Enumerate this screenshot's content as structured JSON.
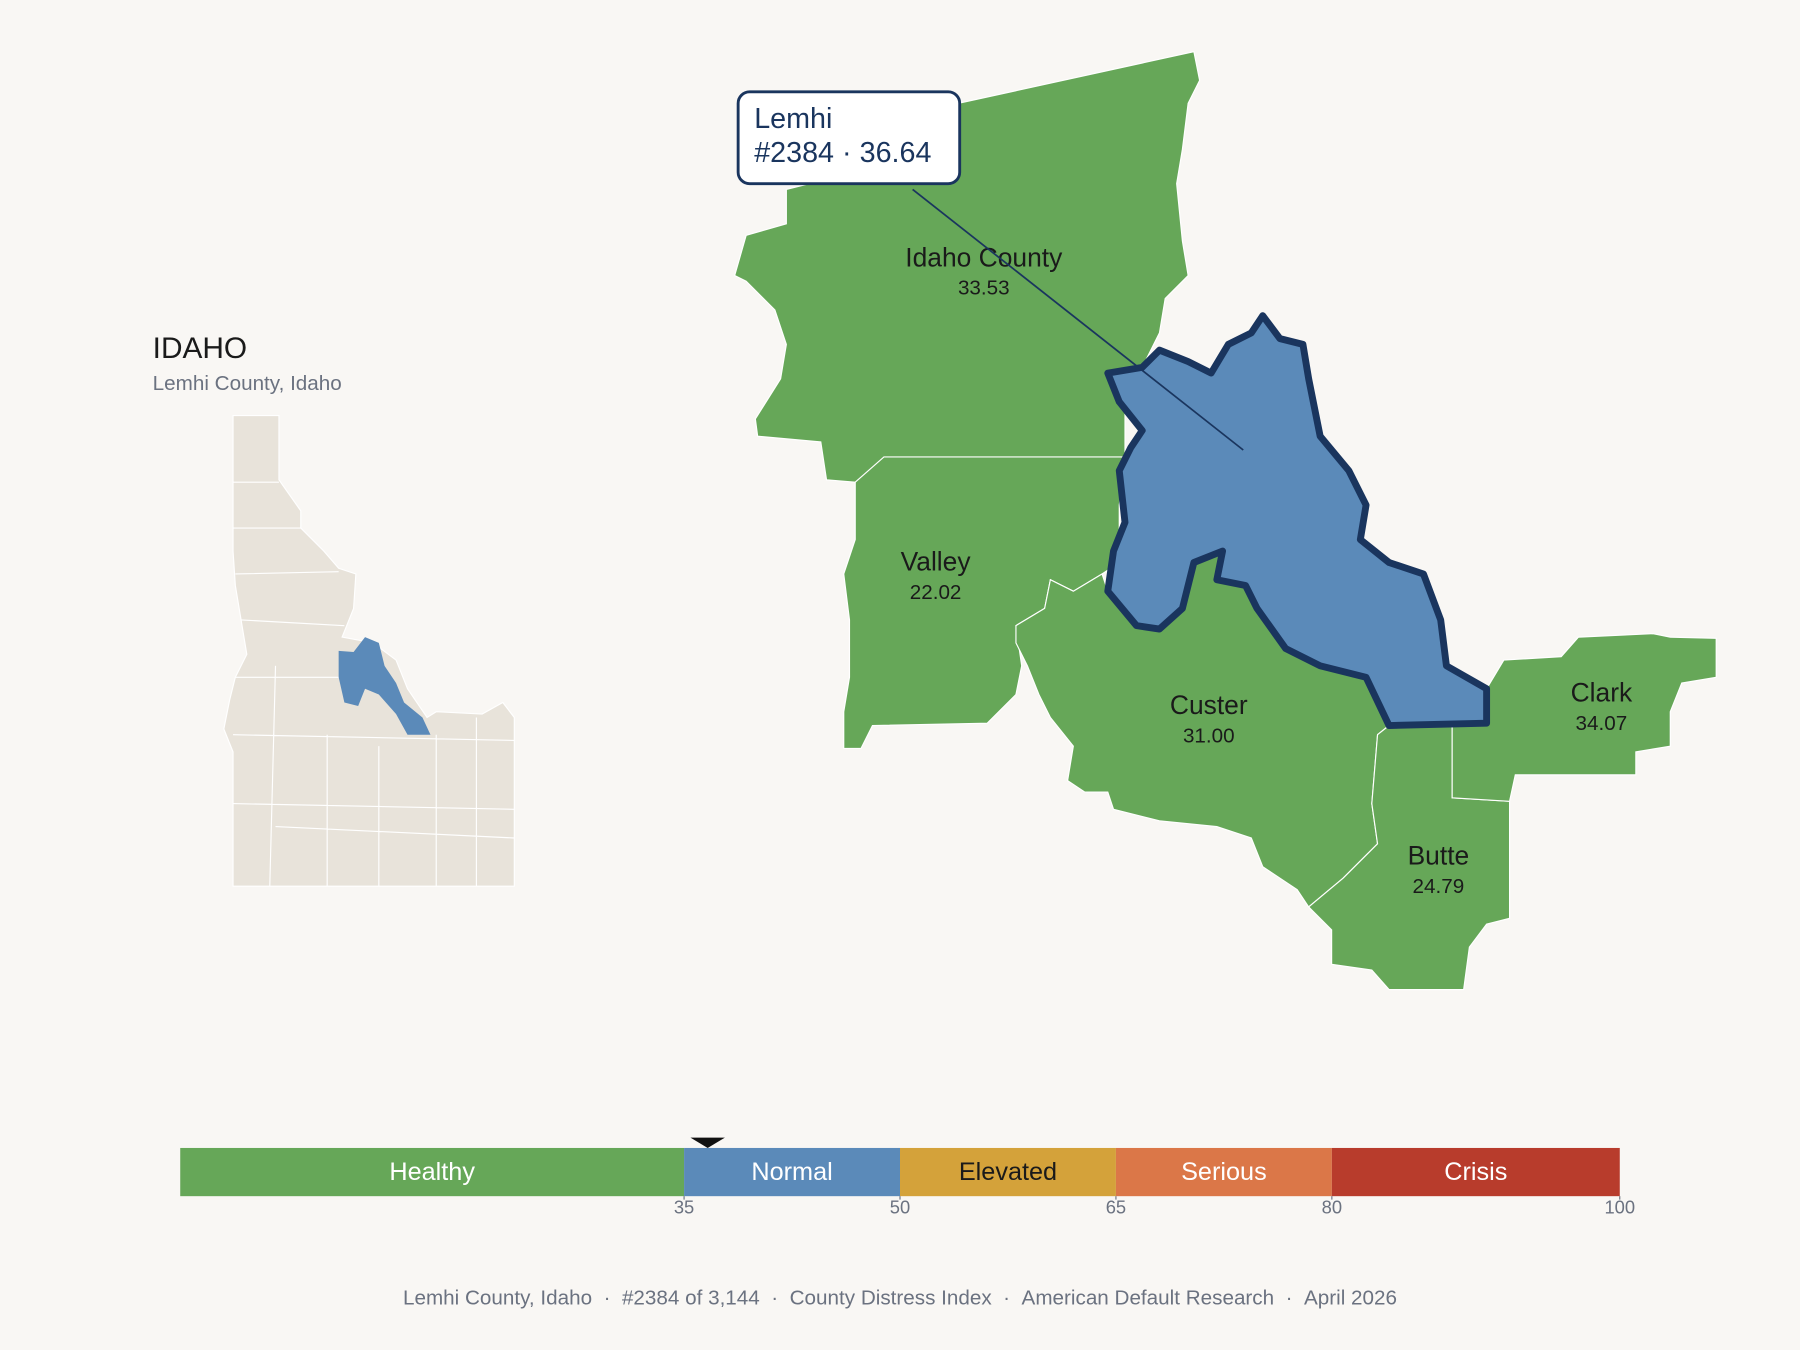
{
  "state": {
    "title": "IDAHO",
    "subtitle": "Lemhi County, Idaho"
  },
  "selected": {
    "name": "Lemhi",
    "rank": "#2384",
    "separator": "·",
    "score": 36.64
  },
  "counties": [
    {
      "name": "Idaho County",
      "value": 33.53
    },
    {
      "name": "Valley",
      "value": 22.02
    },
    {
      "name": "Custer",
      "value": 31.0,
      "value_label": "31.00"
    },
    {
      "name": "Butte",
      "value": 24.79
    },
    {
      "name": "Clark",
      "value": 34.07
    }
  ],
  "scale": {
    "xlim": [
      0,
      100
    ],
    "xticks": [
      35,
      50,
      65,
      80,
      100
    ],
    "bands": [
      {
        "name": "Healthy",
        "to": 35,
        "color": "#66a758"
      },
      {
        "name": "Normal",
        "to": 50,
        "color": "#5b8ab9"
      },
      {
        "name": "Elevated",
        "to": 65,
        "color": "#d4a23a"
      },
      {
        "name": "Serious",
        "to": 80,
        "color": "#db7748"
      },
      {
        "name": "Crisis",
        "to": 100,
        "color": "#b83c2c"
      }
    ]
  },
  "footer": {
    "separator": "·",
    "items": [
      "Lemhi County, Idaho",
      "#2384 of 3,144",
      "County Distress Index",
      "American Default Research",
      "April 2026"
    ]
  }
}
